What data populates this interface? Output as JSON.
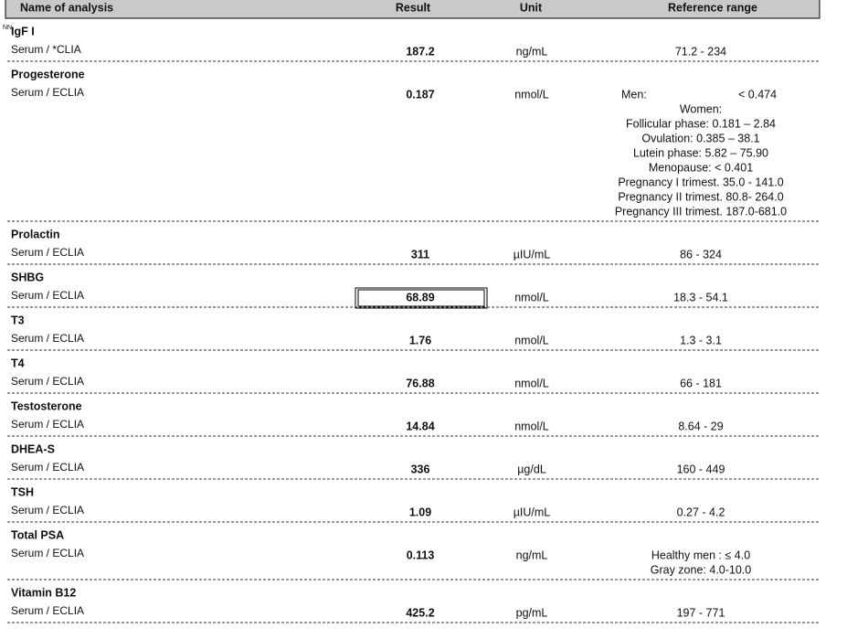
{
  "header": {
    "columns": [
      "Name of analysis",
      "Result",
      "Unit",
      "Reference range"
    ]
  },
  "rows": [
    {
      "marker": "NN",
      "name": "IgF I",
      "sample": "Serum /   *CLIA",
      "result": "187.2",
      "unit": "ng/mL",
      "reference": [
        [
          "71.2 - 234"
        ]
      ]
    },
    {
      "name": "Progesterone",
      "sample": "Serum / ECLIA",
      "result": "0.187",
      "unit": "nmol/L",
      "reference": [
        [
          "Men:",
          "< 0.474"
        ],
        [
          "Women:"
        ],
        [
          "Follicular phase:   0.181 – 2.84"
        ],
        [
          "Ovulation:   0.385 – 38.1"
        ],
        [
          "Lutein phase:       5.82 – 75.90"
        ],
        [
          "Menopause:   < 0.401"
        ],
        [
          "Pregnancy I trimest. 35.0 - 141.0"
        ],
        [
          "Pregnancy II trimest. 80.8- 264.0"
        ],
        [
          "Pregnancy III trimest. 187.0-681.0"
        ]
      ]
    },
    {
      "name": "Prolactin",
      "sample": "Serum / ECLIA",
      "result": "311",
      "unit": "µIU/mL",
      "reference": [
        [
          "86 - 324"
        ]
      ]
    },
    {
      "name": "SHBG",
      "sample": "Serum / ECLIA",
      "result": "68.89",
      "boxed": true,
      "unit": "nmol/L",
      "reference": [
        [
          "18.3 - 54.1"
        ]
      ]
    },
    {
      "name": "T3",
      "sample": "Serum / ECLIA",
      "result": "1.76",
      "unit": "nmol/L",
      "reference": [
        [
          "1.3 - 3.1"
        ]
      ]
    },
    {
      "name": "T4",
      "sample": "Serum / ECLIA",
      "result": "76.88",
      "unit": "nmol/L",
      "reference": [
        [
          "66 - 181"
        ]
      ]
    },
    {
      "name": "Testosterone",
      "sample": "Serum / ECLIA",
      "result": "14.84",
      "unit": "nmol/L",
      "reference": [
        [
          "8.64 - 29"
        ]
      ]
    },
    {
      "name": "DHEA-S",
      "sample": "Serum / ECLIA",
      "result": "336",
      "unit": "µg/dL",
      "reference": [
        [
          "160 - 449"
        ]
      ]
    },
    {
      "name": "TSH",
      "sample": "Serum / ECLIA",
      "result": "1.09",
      "unit": "µIU/mL",
      "reference": [
        [
          "0.27 - 4.2"
        ]
      ]
    },
    {
      "name": "Total PSA",
      "sample": "Serum / ECLIA",
      "result": "0.113",
      "unit": "ng/mL",
      "reference": [
        [
          "Healthy men : ≤ 4.0"
        ],
        [
          "Gray zone: 4.0-10.0"
        ]
      ]
    },
    {
      "name": "Vitamin B12",
      "sample": "Serum / ECLIA",
      "result": "425.2",
      "unit": "pg/mL",
      "reference": [
        [
          "197 - 771"
        ]
      ]
    }
  ]
}
